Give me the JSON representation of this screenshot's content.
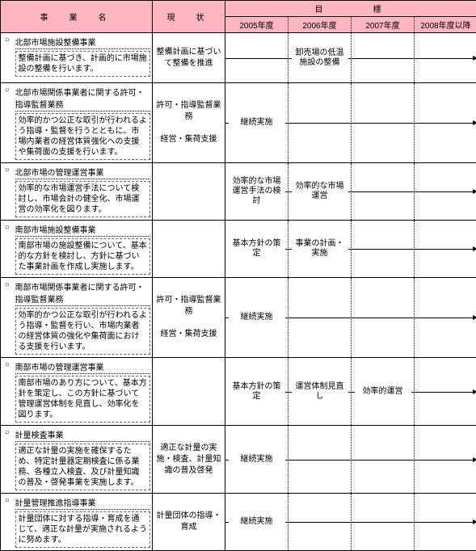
{
  "headers": {
    "name": "事　業　名",
    "status": "現　状",
    "target": "目　　　標",
    "years": [
      "2005年度",
      "2006年度",
      "2007年度",
      "2008年度以降"
    ]
  },
  "rows": [
    {
      "title": "北部市場施設整備事業",
      "desc": "整備計画に基づき、計画的に市場施設の整備を行います。",
      "status": "整備計画に基づいて整備を推進",
      "cells": [
        "",
        "卸売場の低温施設の整備",
        "",
        ""
      ],
      "arrow": {
        "from": 0,
        "to": 3
      }
    },
    {
      "title": "北部市場関係事業者に関する許可・指導監督業務",
      "desc": "効率的かつ公正な取引が行われるよう指導・監督を行うとともに、市場内業者の経営体質強化への支援や集荷面の支援を行います。",
      "status": "許可・指導監督業務\n\n経営・集荷支援",
      "cells": [
        "継続実施",
        "",
        "",
        ""
      ],
      "arrow": {
        "from": 0,
        "to": 3
      }
    },
    {
      "title": "北部市場の管理運営事業",
      "desc": "効率的な市場運営手法について検討し、市場会計の健全化、市場運営の効率化を図ります。",
      "status": "",
      "cells": [
        "効率的な市場運営手法の検討",
        "効率的な市場運営",
        "",
        ""
      ],
      "arrow": {
        "from": 0,
        "to": 3,
        "startOffset": 0.5
      }
    },
    {
      "title": "南部市場施設整備事業",
      "desc": "南部市場の施設整備について、基本的な方針を検討し、方針に基づいた事業計画を作成し実施します。",
      "status": "",
      "cells": [
        "基本方針の策定",
        "事業の計画・実施",
        "",
        ""
      ],
      "arrow": {
        "from": 0,
        "to": 3,
        "startOffset": 0.5
      }
    },
    {
      "title": "南部市場関係事業者に関する許可・指導監督業務",
      "desc": "効率的かつ公正な取引が行われるよう指導・監督を行い、市場内業者の経営体質の強化や集荷面における支援を行います。",
      "status": "許可・指導監督業務\n\n経営・集荷支援",
      "cells": [
        "継続実施",
        "",
        "",
        ""
      ],
      "arrow": {
        "from": 0,
        "to": 3
      }
    },
    {
      "title": "南部市場の管理運営事業",
      "desc": "南部市場のあり方について、基本方針を策定し、この方針に基づいて管理運営体制を見直し、効率化を図ります。",
      "status": "",
      "cells": [
        "基本方針の策定",
        "運営体制見直し",
        "効率的運営",
        ""
      ],
      "arrow": {
        "from": 0,
        "to": 3,
        "startOffset": 0.5
      }
    },
    {
      "title": "計量検査事業",
      "desc": "適正な計量の実施を確保するため、特定計量器定期検査に係る業務、各種立入検査、及び計量知識の普及・啓発事業を実施します。",
      "status": "適正な計量の実施・検査、計量知識の普及啓発",
      "cells": [
        "継続実施",
        "",
        "",
        ""
      ],
      "arrow": {
        "from": 0,
        "to": 3
      }
    },
    {
      "title": "計量管理推進指導事業",
      "desc": "計量団体に対する指導・育成を通じて、適正な計量が実施されるように努めます。",
      "status": "計量団体の指導・育成",
      "cells": [
        "継続実施",
        "",
        "",
        ""
      ],
      "arrow": {
        "from": 0,
        "to": 3
      }
    }
  ]
}
